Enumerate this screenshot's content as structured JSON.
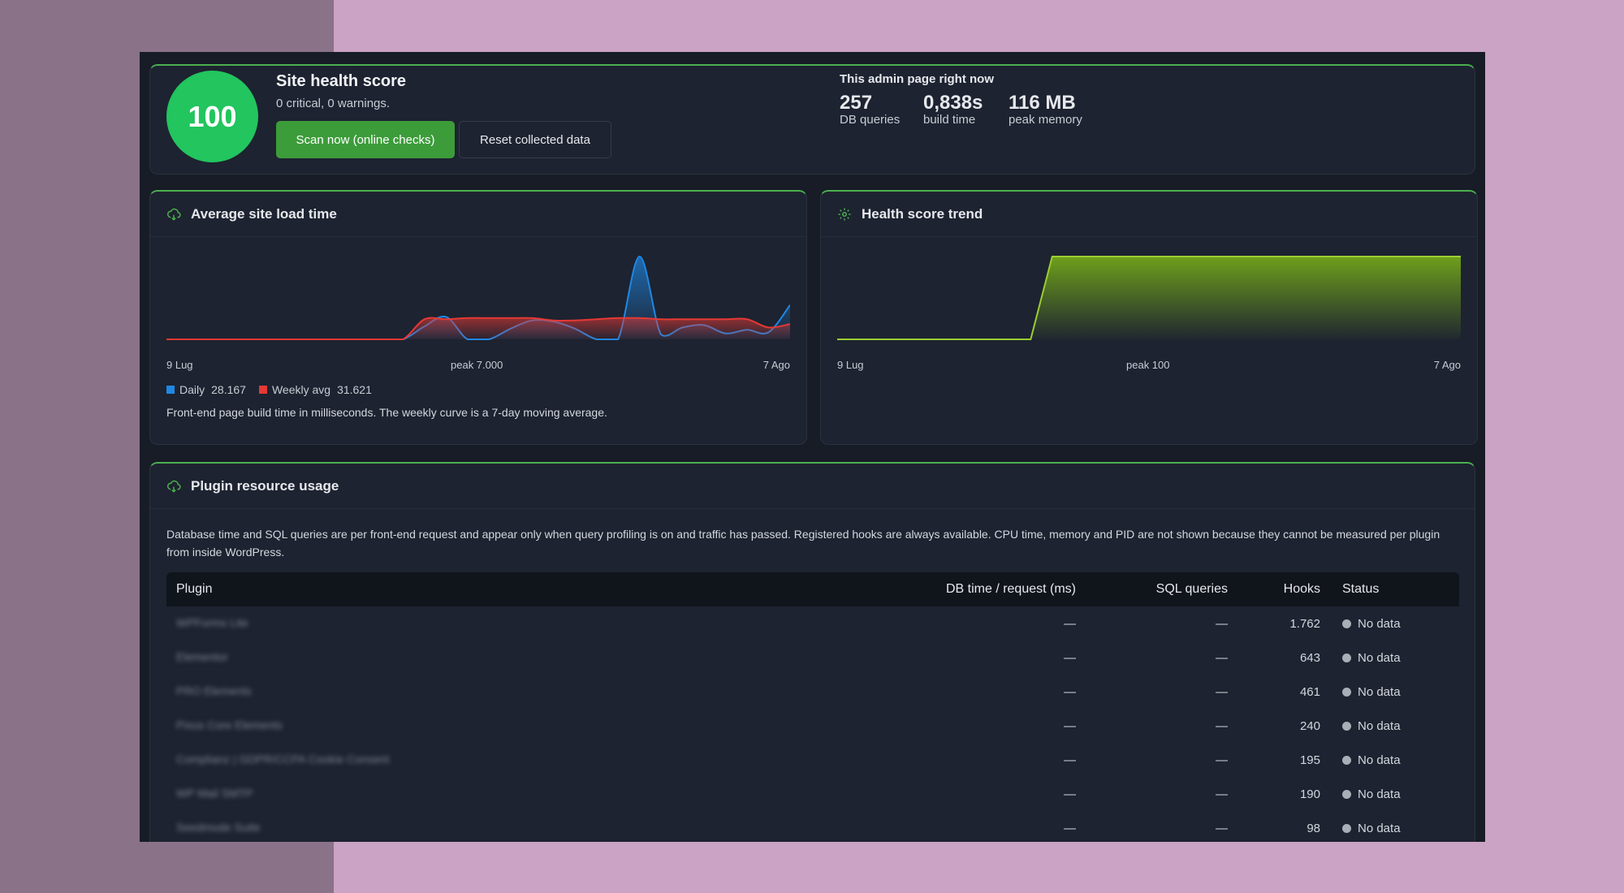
{
  "health": {
    "score": "100",
    "title": "Site health score",
    "subtitle": "0 critical, 0 warnings.",
    "scan_label": "Scan now (online checks)",
    "reset_label": "Reset collected data",
    "now_title": "This admin page right now",
    "metrics": [
      {
        "value": "257",
        "label": "DB queries"
      },
      {
        "value": "0,838s",
        "label": "build time"
      },
      {
        "value": "116 MB",
        "label": "peak memory"
      }
    ]
  },
  "load_card": {
    "title": "Average site load time",
    "x_start": "9 Lug",
    "x_mid": "peak 7.000",
    "x_end": "7 Ago",
    "legend_daily": "Daily",
    "legend_daily_value": "28.167",
    "legend_weekly": "Weekly avg",
    "legend_weekly_value": "31.621",
    "daily_color": "#1e88e5",
    "weekly_color": "#e53935",
    "footnote": "Front-end page build time in milliseconds. The weekly curve is a 7-day moving average."
  },
  "trend_card": {
    "title": "Health score trend",
    "x_start": "9 Lug",
    "x_mid": "peak 100",
    "x_end": "7 Ago",
    "line_color": "#9acd32"
  },
  "plugins": {
    "title": "Plugin resource usage",
    "description": "Database time and SQL queries are per front-end request and appear only when query profiling is on and traffic has passed. Registered hooks are always available. CPU time, memory and PID are not shown because they cannot be measured per plugin from inside WordPress.",
    "columns": {
      "plugin": "Plugin",
      "db_time": "DB time / request (ms)",
      "sql": "SQL queries",
      "hooks": "Hooks",
      "status": "Status"
    },
    "rows": [
      {
        "name": "WPForms Lite",
        "db_time": "—",
        "sql": "—",
        "hooks": "1.762",
        "status": "No data"
      },
      {
        "name": "Elementor",
        "db_time": "—",
        "sql": "—",
        "hooks": "643",
        "status": "No data"
      },
      {
        "name": "PRO Elements",
        "db_time": "—",
        "sql": "—",
        "hooks": "461",
        "status": "No data"
      },
      {
        "name": "Pixus Core Elements",
        "db_time": "—",
        "sql": "—",
        "hooks": "240",
        "status": "No data"
      },
      {
        "name": "Complianz | GDPR/CCPA Cookie Consent",
        "db_time": "—",
        "sql": "—",
        "hooks": "195",
        "status": "No data"
      },
      {
        "name": "WP Mail SMTP",
        "db_time": "—",
        "sql": "—",
        "hooks": "190",
        "status": "No data"
      },
      {
        "name": "Seedmode Suite",
        "db_time": "—",
        "sql": "—",
        "hooks": "98",
        "status": "No data"
      }
    ]
  },
  "chart_data": [
    {
      "type": "area",
      "title": "Average site load time",
      "x": [
        "9 Lug",
        "",
        "",
        "",
        "",
        "",
        "",
        "",
        "",
        "",
        "",
        "",
        "",
        "",
        "",
        "",
        "",
        "",
        "",
        "",
        "",
        "",
        "",
        "",
        "",
        "",
        "",
        "",
        "",
        "7 Ago"
      ],
      "series": [
        {
          "name": "Daily",
          "values": [
            0,
            0,
            0,
            0,
            0,
            0,
            0,
            0,
            0,
            0,
            0,
            0,
            1100,
            1900,
            0,
            0,
            900,
            1600,
            1500,
            900,
            0,
            0,
            7000,
            400,
            1000,
            1200,
            500,
            800,
            600,
            2900
          ]
        },
        {
          "name": "Weekly avg",
          "values": [
            0,
            0,
            0,
            0,
            0,
            0,
            0,
            0,
            0,
            0,
            0,
            0,
            1700,
            1700,
            1800,
            1800,
            1800,
            1800,
            1600,
            1600,
            1700,
            1800,
            1800,
            1700,
            1700,
            1700,
            1700,
            1700,
            1000,
            1300
          ]
        }
      ],
      "ylim": [
        0,
        7000
      ]
    },
    {
      "type": "area",
      "title": "Health score trend",
      "x": [
        "9 Lug",
        "",
        "",
        "",
        "",
        "",
        "",
        "",
        "",
        "",
        "",
        "",
        "",
        "",
        "",
        "",
        "",
        "",
        "",
        "",
        "",
        "",
        "",
        "",
        "",
        "",
        "",
        "",
        "",
        "7 Ago"
      ],
      "series": [
        {
          "name": "",
          "values": [
            0,
            0,
            0,
            0,
            0,
            0,
            0,
            0,
            0,
            0,
            100,
            100,
            100,
            100,
            100,
            100,
            100,
            100,
            100,
            100,
            100,
            100,
            100,
            100,
            100,
            100,
            100,
            100,
            100,
            100
          ]
        }
      ],
      "ylim": [
        0,
        100
      ]
    }
  ]
}
